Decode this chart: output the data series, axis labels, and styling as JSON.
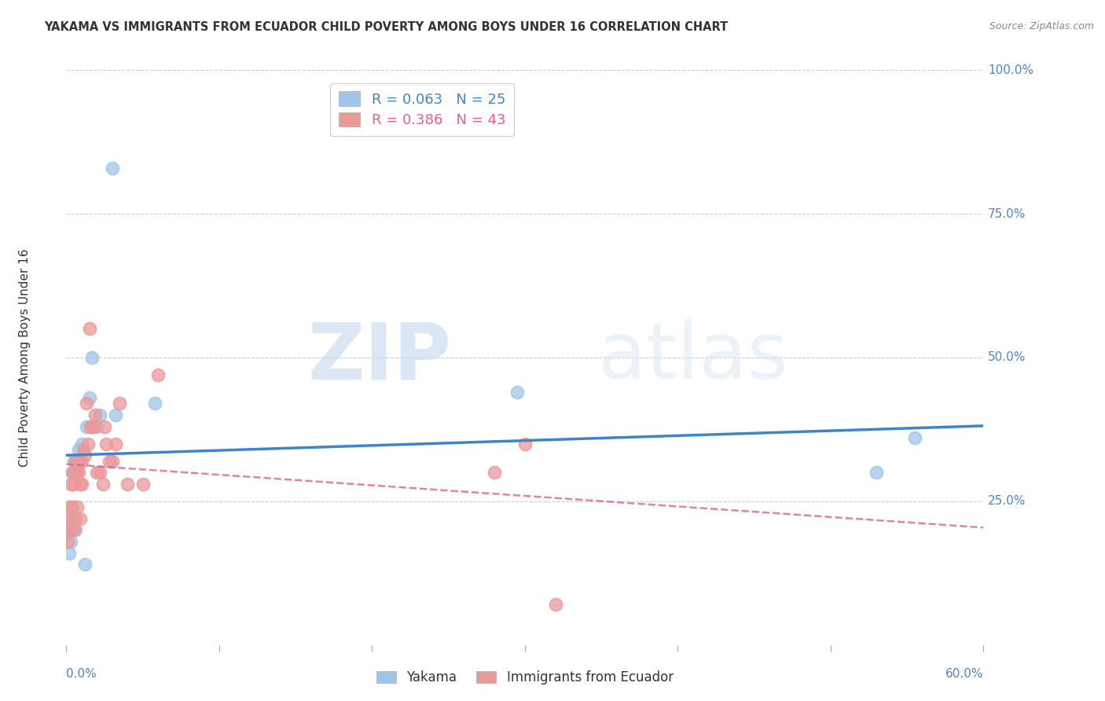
{
  "title": "YAKAMA VS IMMIGRANTS FROM ECUADOR CHILD POVERTY AMONG BOYS UNDER 16 CORRELATION CHART",
  "source": "Source: ZipAtlas.com",
  "ylabel": "Child Poverty Among Boys Under 16",
  "x_tick_labels": [
    "0.0%",
    "60.0%"
  ],
  "y_tick_labels_right": [
    "100.0%",
    "75.0%",
    "50.0%",
    "25.0%"
  ],
  "xlim": [
    0.0,
    0.6
  ],
  "ylim": [
    0.0,
    1.0
  ],
  "legend_labels": [
    "Yakama",
    "Immigrants from Ecuador"
  ],
  "series": [
    {
      "name": "Yakama",
      "R": 0.063,
      "N": 25,
      "color": "#9fc5e8",
      "line_color": "#3d85c8",
      "line_style": "solid",
      "x": [
        0.001,
        0.002,
        0.003,
        0.003,
        0.004,
        0.004,
        0.005,
        0.006,
        0.006,
        0.007,
        0.008,
        0.009,
        0.01,
        0.012,
        0.013,
        0.015,
        0.017,
        0.02,
        0.022,
        0.03,
        0.032,
        0.058,
        0.295,
        0.53,
        0.555
      ],
      "y": [
        0.2,
        0.16,
        0.18,
        0.22,
        0.2,
        0.3,
        0.32,
        0.3,
        0.2,
        0.32,
        0.34,
        0.32,
        0.35,
        0.14,
        0.38,
        0.43,
        0.5,
        0.38,
        0.4,
        0.83,
        0.4,
        0.42,
        0.44,
        0.3,
        0.36
      ]
    },
    {
      "name": "Immigrants from Ecuador",
      "R": 0.386,
      "N": 43,
      "color": "#ea9999",
      "line_color": "#e06090",
      "line_style": "dashed",
      "x": [
        0.001,
        0.002,
        0.002,
        0.003,
        0.003,
        0.004,
        0.004,
        0.005,
        0.005,
        0.006,
        0.006,
        0.007,
        0.007,
        0.008,
        0.008,
        0.009,
        0.009,
        0.01,
        0.01,
        0.011,
        0.012,
        0.013,
        0.014,
        0.015,
        0.016,
        0.017,
        0.018,
        0.019,
        0.02,
        0.022,
        0.024,
        0.025,
        0.026,
        0.028,
        0.03,
        0.032,
        0.035,
        0.04,
        0.05,
        0.06,
        0.28,
        0.3,
        0.32
      ],
      "y": [
        0.18,
        0.2,
        0.24,
        0.22,
        0.28,
        0.24,
        0.3,
        0.2,
        0.28,
        0.22,
        0.32,
        0.3,
        0.24,
        0.3,
        0.32,
        0.22,
        0.28,
        0.28,
        0.32,
        0.34,
        0.33,
        0.42,
        0.35,
        0.55,
        0.38,
        0.38,
        0.38,
        0.4,
        0.3,
        0.3,
        0.28,
        0.38,
        0.35,
        0.32,
        0.32,
        0.35,
        0.42,
        0.28,
        0.28,
        0.47,
        0.3,
        0.35,
        0.07
      ]
    }
  ],
  "watermark_zip": "ZIP",
  "watermark_atlas": "atlas",
  "background_color": "#ffffff",
  "grid_color": "#cccccc",
  "title_color": "#333333",
  "tick_label_color": "#4a86c8"
}
